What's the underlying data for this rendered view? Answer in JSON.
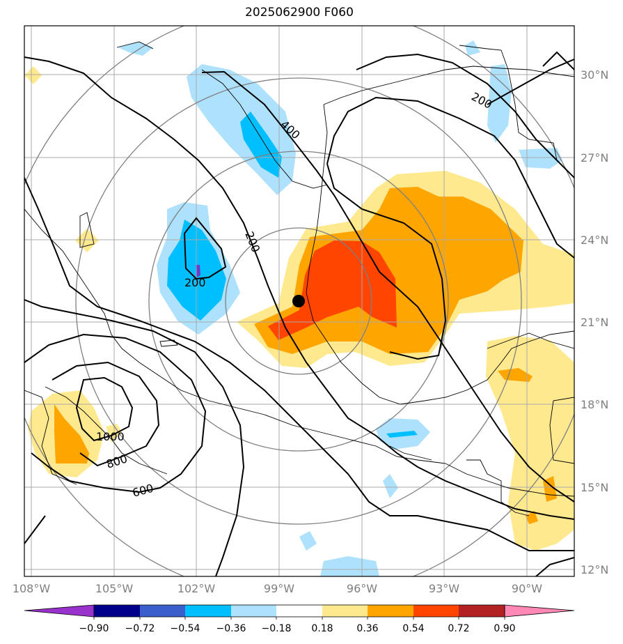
{
  "title": "2025062900 F060",
  "colors": {
    "fill_neg_054": "#00bfff",
    "fill_neg_036": "#aee1fb",
    "fill_pos_036": "#ffe98f",
    "fill_pos_054": "#ffa500",
    "fill_pos_072": "#ff4500",
    "dark_blue": "#0000a0",
    "purple": "#6a3dcf",
    "grid": "#a9a9a9",
    "range_ring": "#808080",
    "contour": "#000000"
  },
  "lat_labels": [
    "30°N",
    "27°N",
    "24°N",
    "21°N",
    "18°N",
    "15°N",
    "12°N"
  ],
  "lon_labels": [
    "108°W",
    "105°W",
    "102°W",
    "99°W",
    "96°W",
    "93°W",
    "90°W"
  ],
  "contour_labels": [
    "400",
    "200",
    "200",
    "200",
    "1000",
    "800",
    "600"
  ],
  "colorbar": {
    "colors": [
      "#9932cc",
      "#00008b",
      "#3a5fcd",
      "#00bfff",
      "#aee1fb",
      "#ffffff",
      "#ffe98f",
      "#ffa500",
      "#ff4500",
      "#b22222",
      "#ff88b4",
      "#ff88b4"
    ],
    "extend_low_color": "#9932cc",
    "extend_high_color": "#ff88b4",
    "ticks": [
      "−0.90",
      "−0.72",
      "−0.54",
      "−0.36",
      "−0.18",
      "0.18",
      "0.36",
      "0.54",
      "0.72",
      "0.90"
    ]
  },
  "storm_center": {
    "label": "storm-center",
    "lat": 21.8,
    "lon": -98.3
  }
}
